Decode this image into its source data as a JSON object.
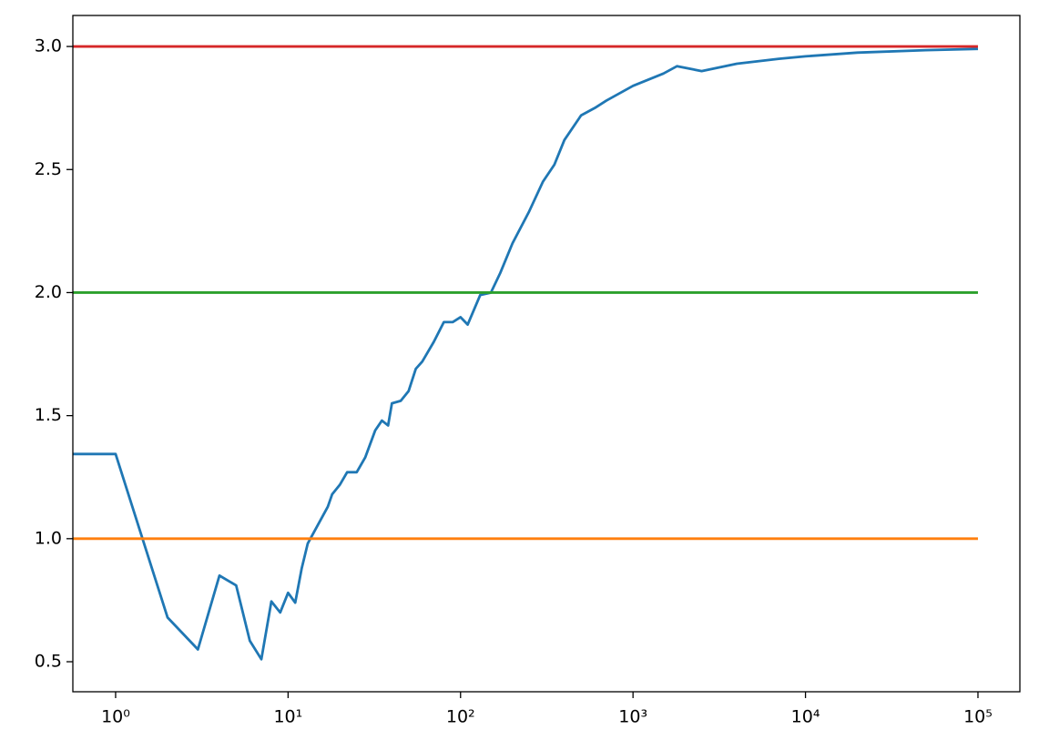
{
  "chart_data": {
    "type": "line",
    "xscale": "log",
    "xlim": [
      0.565,
      175000
    ],
    "ylim": [
      0.378,
      3.126
    ],
    "xticks": [
      {
        "value": 1,
        "label": "10⁰"
      },
      {
        "value": 10,
        "label": "10¹"
      },
      {
        "value": 100,
        "label": "10²"
      },
      {
        "value": 1000,
        "label": "10³"
      },
      {
        "value": 10000,
        "label": "10⁴"
      },
      {
        "value": 100000,
        "label": "10⁵"
      }
    ],
    "yticks": [
      0.5,
      {
        "value": 1,
        "label": "1.0"
      },
      1.5,
      {
        "value": 2,
        "label": "2.0"
      },
      2.5,
      {
        "value": 3,
        "label": "3.0"
      }
    ],
    "grid": false,
    "series": [
      {
        "color": "#1f77b4",
        "x": [
          0,
          1,
          2,
          3,
          4,
          5,
          6,
          7,
          8,
          9,
          10,
          11,
          12,
          13,
          15,
          17,
          18,
          20,
          22,
          25,
          28,
          32,
          35,
          38,
          40,
          45,
          50,
          55,
          60,
          70,
          80,
          90,
          100,
          110,
          130,
          150,
          170,
          200,
          250,
          300,
          350,
          400,
          500,
          600,
          700,
          1000,
          1500,
          1800,
          2500,
          4000,
          7000,
          10000,
          20000,
          50000,
          100000
        ],
        "values": [
          1.344,
          1.344,
          0.68,
          0.55,
          0.85,
          0.81,
          0.585,
          0.51,
          0.745,
          0.7,
          0.78,
          0.74,
          0.88,
          0.98,
          1.06,
          1.13,
          1.18,
          1.22,
          1.27,
          1.27,
          1.33,
          1.44,
          1.48,
          1.46,
          1.55,
          1.56,
          1.6,
          1.69,
          1.72,
          1.8,
          1.88,
          1.88,
          1.9,
          1.87,
          1.99,
          2.0,
          2.08,
          2.2,
          2.33,
          2.45,
          2.52,
          2.62,
          2.72,
          2.75,
          2.78,
          2.84,
          2.89,
          2.92,
          2.9,
          2.93,
          2.95,
          2.96,
          2.975,
          2.985,
          2.99
        ]
      },
      {
        "color": "#ff7f0e",
        "x": [
          0,
          100000
        ],
        "values": [
          1,
          1
        ]
      },
      {
        "color": "#2ca02c",
        "x": [
          0,
          100000
        ],
        "values": [
          2,
          2
        ]
      },
      {
        "color": "#d62728",
        "x": [
          0,
          100000
        ],
        "values": [
          3,
          3
        ]
      }
    ]
  }
}
